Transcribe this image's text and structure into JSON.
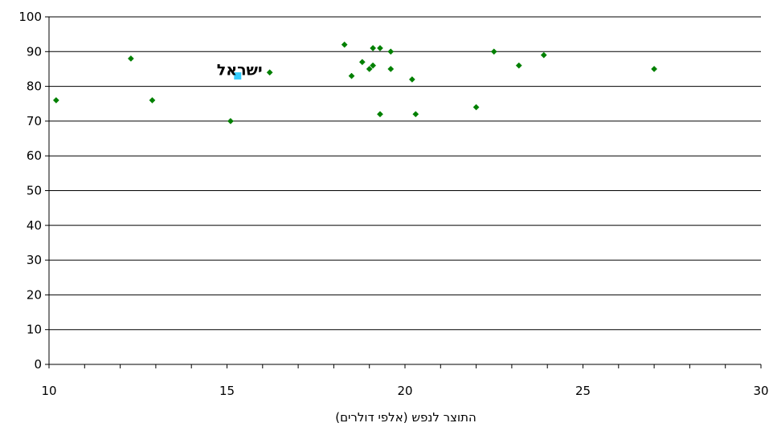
{
  "chart_data": {
    "type": "scatter",
    "title": "",
    "xlabel": "התוצר לנפש (אלפי דולרים)",
    "ylabel": "",
    "xlim": [
      10,
      30
    ],
    "ylim": [
      0,
      100
    ],
    "x_ticks": [
      10,
      15,
      20,
      25,
      30
    ],
    "y_ticks": [
      0,
      10,
      20,
      30,
      40,
      50,
      60,
      70,
      80,
      90,
      100
    ],
    "grid": "horizontal",
    "legend": "none",
    "series": [
      {
        "color": "#008000",
        "marker": "diamond",
        "points": [
          {
            "x": 10.2,
            "y": 76
          },
          {
            "x": 12.3,
            "y": 88
          },
          {
            "x": 12.9,
            "y": 76
          },
          {
            "x": 15.1,
            "y": 70
          },
          {
            "x": 16.2,
            "y": 84
          },
          {
            "x": 18.3,
            "y": 92
          },
          {
            "x": 18.5,
            "y": 83
          },
          {
            "x": 18.8,
            "y": 87
          },
          {
            "x": 19.0,
            "y": 85
          },
          {
            "x": 19.1,
            "y": 86
          },
          {
            "x": 19.1,
            "y": 91
          },
          {
            "x": 19.3,
            "y": 91
          },
          {
            "x": 19.3,
            "y": 72
          },
          {
            "x": 19.6,
            "y": 90
          },
          {
            "x": 19.6,
            "y": 85
          },
          {
            "x": 20.2,
            "y": 82
          },
          {
            "x": 20.3,
            "y": 72
          },
          {
            "x": 22.0,
            "y": 74
          },
          {
            "x": 22.5,
            "y": 90
          },
          {
            "x": 23.2,
            "y": 86
          },
          {
            "x": 23.9,
            "y": 89
          },
          {
            "x": 27.0,
            "y": 85
          }
        ]
      },
      {
        "color": "#33CCFF",
        "marker": "square",
        "points": [
          {
            "x": 15.3,
            "y": 83
          }
        ]
      }
    ],
    "annotations": [
      {
        "text": "ישראל",
        "x": 15.3,
        "y": 83
      }
    ]
  }
}
